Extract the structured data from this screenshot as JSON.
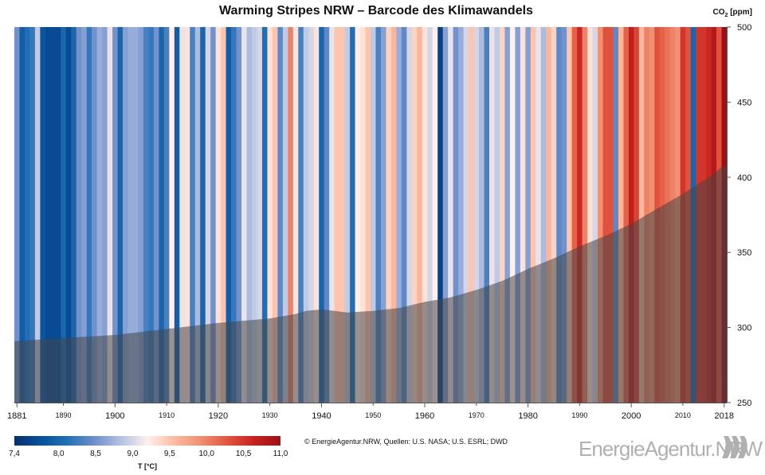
{
  "chart_data": {
    "type": "bar",
    "title": "Warming Stripes NRW – Barcode des Klimawandels",
    "y2label": "CO",
    "y2label_sub": "2",
    "y2label_unit": " [ppm]",
    "x_start": 1881,
    "x_end": 2018,
    "temperatures_C": [
      8.5,
      7.9,
      8.1,
      8.2,
      8.9,
      7.8,
      7.7,
      7.7,
      7.7,
      8.0,
      7.7,
      8.0,
      8.5,
      8.6,
      8.2,
      8.5,
      8.7,
      8.6,
      9.1,
      8.5,
      8.0,
      8.6,
      8.7,
      8.7,
      8.6,
      8.3,
      8.2,
      8.5,
      8.0,
      8.3,
      9.2,
      7.9,
      9.1,
      9.3,
      8.3,
      8.8,
      8.0,
      9.0,
      8.5,
      9.3,
      9.5,
      7.9,
      8.2,
      8.5,
      9.1,
      8.8,
      8.9,
      9.0,
      8.1,
      9.3,
      9.5,
      8.4,
      8.9,
      10.0,
      9.3,
      8.3,
      8.9,
      9.0,
      9.3,
      8.0,
      8.4,
      9.1,
      9.5,
      9.5,
      8.9,
      8.1,
      9.2,
      9.3,
      9.5,
      8.9,
      8.3,
      8.6,
      9.4,
      9.6,
      8.7,
      8.4,
      9.0,
      9.4,
      9.6,
      9.3,
      9.0,
      9.2,
      7.6,
      8.6,
      9.1,
      8.5,
      8.7,
      9.0,
      9.5,
      9.0,
      8.8,
      8.3,
      9.1,
      8.9,
      9.4,
      8.6,
      9.2,
      8.6,
      9.3,
      8.6,
      9.5,
      9.1,
      8.8,
      9.6,
      9.4,
      8.4,
      8.5,
      9.5,
      10.2,
      10.6,
      10.0,
      9.3,
      9.0,
      9.9,
      10.3,
      10.3,
      8.4,
      9.6,
      10.2,
      10.7,
      10.4,
      9.6,
      10.0,
      9.9,
      10.3,
      10.2,
      10.1,
      10.0,
      9.9,
      10.5,
      10.3,
      8.0,
      10.5,
      10.5,
      10.6,
      10.8,
      10.3,
      11.0
    ],
    "co2_ppm": [
      [
        1881,
        291
      ],
      [
        1890,
        293
      ],
      [
        1900,
        295
      ],
      [
        1910,
        299
      ],
      [
        1920,
        303
      ],
      [
        1930,
        306
      ],
      [
        1935,
        309
      ],
      [
        1937,
        311
      ],
      [
        1940,
        312
      ],
      [
        1945,
        310
      ],
      [
        1950,
        311
      ],
      [
        1955,
        313
      ],
      [
        1960,
        317
      ],
      [
        1965,
        320
      ],
      [
        1970,
        325
      ],
      [
        1975,
        331
      ],
      [
        1980,
        339
      ],
      [
        1985,
        346
      ],
      [
        1990,
        354
      ],
      [
        1995,
        361
      ],
      [
        2000,
        369
      ],
      [
        2005,
        379
      ],
      [
        2010,
        389
      ],
      [
        2015,
        400
      ],
      [
        2018,
        408
      ]
    ],
    "x_ticks_major": [
      "1881",
      "1900",
      "1920",
      "1940",
      "1960",
      "1980",
      "2000",
      "2018"
    ],
    "x_ticks_minor": [
      "1890",
      "1910",
      "1930",
      "1950",
      "1970",
      "1990",
      "2010"
    ],
    "y2_ticks": [
      "250",
      "300",
      "350",
      "400",
      "450",
      "500"
    ],
    "y2lim": [
      250,
      500
    ],
    "color_scale": {
      "min": 7.4,
      "max": 11.0,
      "stops": [
        "#08306b",
        "#08519c",
        "#2171b5",
        "#6f8fcb",
        "#b2c2e3",
        "#fff0ec",
        "#fcbba1",
        "#f08f71",
        "#e2553e",
        "#c8211f",
        "#9e1016"
      ],
      "ticks": [
        "7,4",
        "8,0",
        "8,5",
        "9,0",
        "9,5",
        "10,0",
        "10,5",
        "11,0"
      ],
      "label": "T [°C]"
    }
  },
  "footer": {
    "credit": "© EnergieAgentur.NRW, Quellen: U.S. NASA; U.S. ESRL; DWD",
    "logo": "EnergieAgentur.NRW"
  }
}
